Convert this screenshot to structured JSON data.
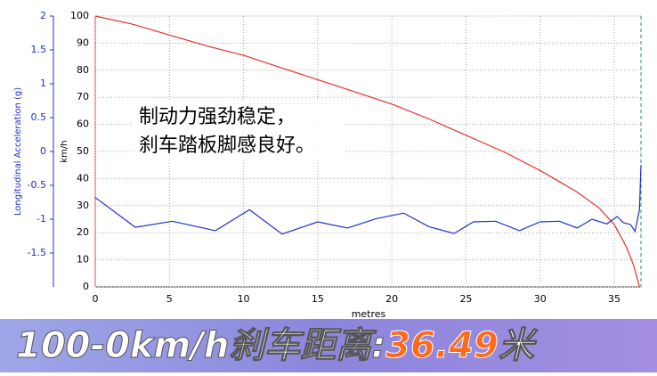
{
  "chart_data": {
    "type": "line",
    "x_label": "metres",
    "y_label": "km/h",
    "y2_label": "Longitudinal Acceleration (g)",
    "xlim": [
      0,
      36.8
    ],
    "xticks": [
      0,
      5,
      10,
      15,
      20,
      25,
      30,
      35
    ],
    "ylim": [
      0,
      100
    ],
    "yticks": [
      0,
      10,
      20,
      30,
      40,
      50,
      60,
      70,
      80,
      90,
      100
    ],
    "y2lim": [
      -2,
      2
    ],
    "y2ticks": [
      -1.5,
      -1,
      -0.5,
      0,
      0.5,
      1,
      1.5,
      2
    ],
    "grid": true,
    "annotation": [
      "制动力强劲稳定，",
      "刹车踏板脚感良好。"
    ],
    "series": [
      {
        "color": "#e8302a",
        "x": [
          0,
          2.5,
          5,
          7.5,
          10,
          12.5,
          15,
          17.5,
          20,
          22.5,
          25,
          27.5,
          30,
          32.5,
          34,
          35,
          35.8,
          36.3,
          36.7
        ],
        "values": [
          100,
          97,
          93,
          89,
          85.5,
          81,
          76.5,
          72,
          67.5,
          62,
          56,
          50,
          43,
          35,
          29,
          23,
          15,
          8,
          0
        ]
      },
      {
        "color": "#2030d0",
        "axis": "y2",
        "x": [
          0,
          2.7,
          5.2,
          8.1,
          10.4,
          12.6,
          15,
          17,
          19,
          20.8,
          22.5,
          24.2,
          25.5,
          27,
          28.6,
          30,
          31.3,
          32.5,
          33.5,
          34.5,
          35.2,
          35.6,
          36.1,
          36.4,
          36.7,
          36.8
        ],
        "values": [
          -0.68,
          -1.12,
          -1.03,
          -1.17,
          -0.86,
          -1.22,
          -1.04,
          -1.13,
          -0.99,
          -0.91,
          -1.11,
          -1.21,
          -1.04,
          -1.03,
          -1.17,
          -1.04,
          -1.03,
          -1.13,
          -1.0,
          -1.07,
          -0.96,
          -1.05,
          -1.08,
          -1.18,
          -0.86,
          -0.2
        ]
      }
    ]
  },
  "banner": {
    "label": "100-0km/h刹车距离:",
    "value": "36.49",
    "unit": "米"
  }
}
